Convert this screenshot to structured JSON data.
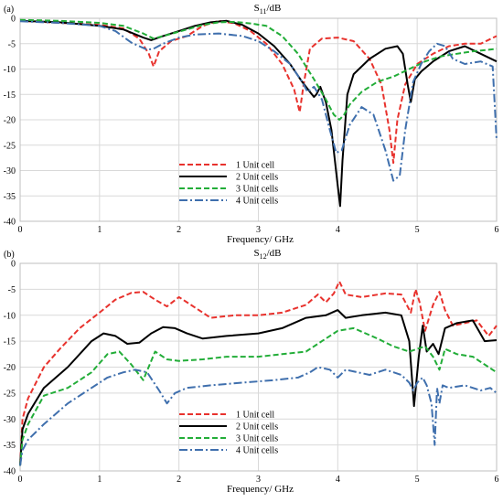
{
  "chart_data": [
    {
      "type": "line",
      "panel_label": "(a)",
      "title_main": "S",
      "title_sub": "11",
      "title_suffix": "/dB",
      "xlabel": "Frequency/ GHz",
      "ylabel": "",
      "xlim": [
        0,
        6
      ],
      "ylim": [
        -40,
        0
      ],
      "xticks": [
        0,
        1,
        2,
        3,
        4,
        5,
        6
      ],
      "yticks": [
        0,
        -5,
        -10,
        -15,
        -20,
        -25,
        -30,
        -35,
        -40
      ],
      "grid": true,
      "legend_position": "bottom-center",
      "series": [
        {
          "name": "1 Unit cell",
          "color": "#e8322d",
          "dash": "dashed",
          "x": [
            0,
            0.5,
            1.0,
            1.3,
            1.5,
            1.62,
            1.68,
            1.75,
            1.9,
            2.1,
            2.3,
            2.5,
            2.7,
            2.9,
            3.1,
            3.3,
            3.45,
            3.52,
            3.57,
            3.65,
            3.8,
            4.0,
            4.2,
            4.4,
            4.55,
            4.65,
            4.7,
            4.75,
            4.85,
            5.0,
            5.2,
            5.4,
            5.6,
            5.8,
            6.0
          ],
          "values": [
            -0.5,
            -0.9,
            -1.3,
            -2.0,
            -4.0,
            -7.0,
            -9.5,
            -6.5,
            -4.5,
            -3.5,
            -1.5,
            -0.5,
            -1.0,
            -2.5,
            -5.0,
            -9.0,
            -14.0,
            -18.5,
            -13.0,
            -6.0,
            -4.0,
            -3.8,
            -4.5,
            -8.0,
            -13.0,
            -22.0,
            -28.5,
            -20.0,
            -13.0,
            -9.0,
            -7.0,
            -5.5,
            -5.0,
            -5.0,
            -3.5
          ]
        },
        {
          "name": "2 Unit cells",
          "color": "#000000",
          "dash": "solid",
          "x": [
            0,
            0.5,
            1.0,
            1.3,
            1.55,
            1.65,
            1.8,
            2.0,
            2.2,
            2.4,
            2.6,
            2.8,
            3.0,
            3.2,
            3.4,
            3.55,
            3.65,
            3.7,
            3.73,
            3.78,
            3.85,
            3.92,
            4.0,
            4.03,
            4.06,
            4.12,
            4.2,
            4.4,
            4.6,
            4.75,
            4.82,
            4.88,
            4.92,
            4.97,
            5.05,
            5.2,
            5.4,
            5.6,
            5.8,
            6.0
          ],
          "values": [
            -0.5,
            -0.8,
            -1.5,
            -2.2,
            -3.8,
            -4.3,
            -3.5,
            -2.5,
            -1.5,
            -0.8,
            -0.5,
            -1.3,
            -3.0,
            -5.5,
            -9.0,
            -12.5,
            -14.5,
            -15.5,
            -15.0,
            -13.5,
            -16.5,
            -22.0,
            -33.0,
            -37.0,
            -28.0,
            -15.0,
            -11.0,
            -8.0,
            -6.0,
            -5.5,
            -7.0,
            -13.0,
            -16.5,
            -12.0,
            -10.5,
            -8.5,
            -6.5,
            -5.5,
            -7.0,
            -8.5
          ]
        },
        {
          "name": "3 Unit cells",
          "color": "#22ad38",
          "dash": "dashed",
          "x": [
            0,
            0.5,
            1.0,
            1.3,
            1.55,
            1.68,
            1.85,
            2.1,
            2.3,
            2.5,
            2.7,
            2.9,
            3.1,
            3.3,
            3.5,
            3.7,
            3.85,
            3.95,
            4.02,
            4.08,
            4.15,
            4.3,
            4.5,
            4.7,
            4.9,
            5.1,
            5.3,
            5.5,
            5.7,
            5.9,
            6.0
          ],
          "values": [
            -0.3,
            -0.5,
            -0.9,
            -1.5,
            -3.0,
            -4.0,
            -3.3,
            -2.2,
            -1.3,
            -0.8,
            -0.7,
            -1.0,
            -1.5,
            -3.5,
            -7.0,
            -12.0,
            -16.0,
            -19.0,
            -20.0,
            -19.0,
            -17.0,
            -14.5,
            -12.5,
            -11.5,
            -10.0,
            -8.5,
            -7.5,
            -7.0,
            -6.5,
            -6.2,
            -6.0
          ]
        },
        {
          "name": "4 Unit cells",
          "color": "#3f6fad",
          "dash": "dashdot",
          "x": [
            0,
            0.5,
            1.0,
            1.2,
            1.4,
            1.6,
            1.68,
            1.8,
            2.0,
            2.2,
            2.5,
            2.8,
            3.0,
            3.2,
            3.4,
            3.55,
            3.62,
            3.7,
            3.8,
            3.9,
            3.98,
            4.05,
            4.15,
            4.3,
            4.45,
            4.6,
            4.7,
            4.78,
            4.85,
            4.95,
            5.05,
            5.15,
            5.25,
            5.35,
            5.45,
            5.6,
            5.8,
            5.95,
            6.0
          ],
          "values": [
            -0.6,
            -0.9,
            -1.5,
            -2.5,
            -4.8,
            -6.2,
            -6.0,
            -5.0,
            -3.8,
            -3.2,
            -3.0,
            -3.5,
            -4.5,
            -6.5,
            -9.0,
            -12.5,
            -14.5,
            -13.5,
            -16.0,
            -22.0,
            -26.5,
            -26.0,
            -21.0,
            -17.5,
            -19.0,
            -26.0,
            -32.0,
            -31.0,
            -22.0,
            -12.5,
            -9.0,
            -6.5,
            -5.0,
            -5.5,
            -8.0,
            -9.0,
            -8.5,
            -9.5,
            -24.0
          ]
        }
      ]
    },
    {
      "type": "line",
      "panel_label": "(b)",
      "title_main": "S",
      "title_sub": "12",
      "title_suffix": "/dB",
      "xlabel": "Frequency/ GHz",
      "ylabel": "",
      "xlim": [
        0,
        6
      ],
      "ylim": [
        -40,
        0
      ],
      "xticks": [
        0,
        1,
        2,
        3,
        4,
        5,
        6
      ],
      "yticks": [
        0,
        -5,
        -10,
        -15,
        -20,
        -25,
        -30,
        -35,
        -40
      ],
      "grid": true,
      "legend_position": "bottom-center",
      "series": [
        {
          "name": "1 Unit cell",
          "color": "#e8322d",
          "dash": "dashed",
          "x": [
            0,
            0.03,
            0.1,
            0.3,
            0.5,
            0.75,
            1.0,
            1.2,
            1.4,
            1.55,
            1.7,
            1.85,
            2.0,
            2.2,
            2.4,
            2.7,
            3.0,
            3.3,
            3.6,
            3.75,
            3.85,
            3.95,
            4.02,
            4.1,
            4.3,
            4.6,
            4.8,
            4.92,
            4.98,
            5.03,
            5.1,
            5.2,
            5.28,
            5.35,
            5.45,
            5.6,
            5.75,
            5.9,
            6.0
          ],
          "values": [
            -39,
            -30,
            -26,
            -20,
            -16.5,
            -12.5,
            -9.5,
            -7.0,
            -5.7,
            -5.5,
            -7.0,
            -8.3,
            -6.5,
            -8.5,
            -10.5,
            -10.0,
            -10.0,
            -9.5,
            -8.0,
            -6.0,
            -7.5,
            -5.8,
            -3.5,
            -6.0,
            -6.5,
            -5.8,
            -6.0,
            -9.5,
            -5.0,
            -7.5,
            -13.0,
            -8.0,
            -5.5,
            -9.0,
            -12.0,
            -11.5,
            -11.0,
            -14.0,
            -12.0
          ]
        },
        {
          "name": "2 Unit cells",
          "color": "#000000",
          "dash": "solid",
          "x": [
            0,
            0.03,
            0.1,
            0.3,
            0.6,
            0.9,
            1.05,
            1.2,
            1.35,
            1.5,
            1.65,
            1.8,
            1.95,
            2.1,
            2.3,
            2.6,
            3.0,
            3.3,
            3.6,
            3.85,
            4.0,
            4.1,
            4.3,
            4.6,
            4.8,
            4.9,
            4.96,
            5.02,
            5.07,
            5.12,
            5.2,
            5.27,
            5.35,
            5.5,
            5.7,
            5.85,
            6.0
          ],
          "values": [
            -39,
            -32,
            -29,
            -24,
            -20,
            -15,
            -13.5,
            -14.0,
            -15.5,
            -15.3,
            -13.5,
            -12.3,
            -12.5,
            -13.5,
            -14.5,
            -14.0,
            -13.5,
            -12.5,
            -10.5,
            -10.0,
            -9.0,
            -10.5,
            -10.0,
            -9.5,
            -10.0,
            -15.0,
            -27.5,
            -18.0,
            -12.0,
            -17.0,
            -15.5,
            -17.5,
            -12.5,
            -11.5,
            -11.0,
            -15.0,
            -14.8
          ]
        },
        {
          "name": "3 Unit cells",
          "color": "#22ad38",
          "dash": "dashed",
          "x": [
            0,
            0.03,
            0.1,
            0.3,
            0.6,
            0.9,
            1.1,
            1.25,
            1.4,
            1.55,
            1.7,
            1.85,
            2.0,
            2.3,
            2.6,
            3.0,
            3.3,
            3.6,
            3.8,
            4.0,
            4.2,
            4.5,
            4.7,
            4.9,
            5.0,
            5.1,
            5.2,
            5.28,
            5.35,
            5.5,
            5.7,
            5.9,
            6.0
          ],
          "values": [
            -39,
            -34,
            -31,
            -25.5,
            -24,
            -21,
            -17.5,
            -17.0,
            -19.5,
            -22.5,
            -17.0,
            -18.5,
            -18.8,
            -18.5,
            -18.0,
            -18.0,
            -17.5,
            -17.0,
            -15.0,
            -13.0,
            -12.5,
            -14.5,
            -16.0,
            -17.0,
            -16.5,
            -16.0,
            -18.0,
            -20.5,
            -16.5,
            -17.5,
            -18.0,
            -20.0,
            -21.0
          ]
        },
        {
          "name": "4 Unit cells",
          "color": "#3f6fad",
          "dash": "dashdot",
          "x": [
            0,
            0.03,
            0.1,
            0.3,
            0.6,
            0.9,
            1.1,
            1.3,
            1.45,
            1.6,
            1.75,
            1.85,
            1.95,
            2.1,
            2.4,
            2.8,
            3.2,
            3.5,
            3.65,
            3.75,
            3.9,
            4.0,
            4.1,
            4.4,
            4.6,
            4.8,
            4.9,
            4.95,
            5.0,
            5.07,
            5.12,
            5.18,
            5.22,
            5.25,
            5.28,
            5.32,
            5.4,
            5.6,
            5.8,
            5.92,
            6.0
          ],
          "values": [
            -39,
            -36,
            -34,
            -31,
            -27,
            -24,
            -22.0,
            -21.0,
            -20.5,
            -21.0,
            -24.5,
            -27.0,
            -25.0,
            -24.0,
            -23.5,
            -23.0,
            -22.5,
            -22.0,
            -21.0,
            -20.0,
            -20.5,
            -22.0,
            -20.5,
            -21.5,
            -20.5,
            -21.5,
            -23.0,
            -24.5,
            -23.0,
            -22.0,
            -23.5,
            -27.0,
            -35.0,
            -24.0,
            -27.0,
            -23.5,
            -24.0,
            -23.5,
            -24.5,
            -24.0,
            -25.0
          ]
        }
      ]
    }
  ]
}
